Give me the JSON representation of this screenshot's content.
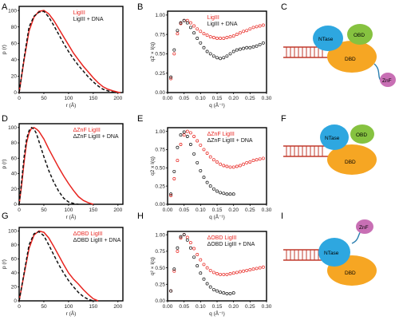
{
  "colors": {
    "red": "#e8241f",
    "black": "#111111",
    "ntase": "#2ea7e0",
    "obd": "#86c240",
    "dbd": "#f6a623",
    "znf": "#c86fb4",
    "linker": "#2b7fb0",
    "dna": "#c0392b"
  },
  "panels": {
    "A": {
      "label": "A"
    },
    "B": {
      "label": "B"
    },
    "C": {
      "label": "C"
    },
    "D": {
      "label": "D"
    },
    "E": {
      "label": "E"
    },
    "F": {
      "label": "F"
    },
    "G": {
      "label": "G"
    },
    "H": {
      "label": "H"
    },
    "I": {
      "label": "I"
    }
  },
  "diagrams": {
    "C": {
      "ntase": "NTase",
      "obd": "OBD",
      "dbd": "DBD",
      "znf": "ZnF"
    },
    "F": {
      "ntase": "NTase",
      "obd": "OBD",
      "dbd": "DBD"
    },
    "I": {
      "ntase": "NTase",
      "znf": "ZnF",
      "dbd": "DBD"
    }
  },
  "chart_data": [
    {
      "id": "A",
      "type": "line",
      "xlabel": "r (Å)",
      "ylabel": "p (r)",
      "xlim": [
        0,
        210
      ],
      "ylim": [
        0,
        105
      ],
      "xticks": [
        "0",
        "50",
        "100",
        "150",
        "200"
      ],
      "yticks": [
        "0",
        "20",
        "40",
        "60",
        "80",
        "100"
      ],
      "series": [
        {
          "name": "LigIII",
          "color": "red",
          "style": "solid",
          "x": [
            0,
            10,
            20,
            30,
            40,
            50,
            60,
            70,
            80,
            90,
            100,
            110,
            120,
            130,
            140,
            150,
            160,
            170,
            180,
            190,
            200,
            205
          ],
          "y": [
            0,
            40,
            75,
            92,
            99,
            100,
            96,
            88,
            78,
            68,
            58,
            48,
            40,
            32,
            25,
            18,
            12,
            7,
            4,
            2,
            0.5,
            0
          ]
        },
        {
          "name": "LigIII + DNA",
          "color": "black",
          "style": "dashed",
          "x": [
            0,
            10,
            20,
            30,
            40,
            50,
            60,
            70,
            80,
            90,
            100,
            110,
            120,
            130,
            140,
            150,
            160,
            170,
            180,
            190,
            195
          ],
          "y": [
            0,
            42,
            80,
            93,
            98,
            99,
            92,
            82,
            71,
            60,
            50,
            41,
            33,
            26,
            19,
            13,
            8,
            4,
            2,
            0.5,
            0
          ]
        }
      ]
    },
    {
      "id": "B",
      "type": "scatter",
      "xlabel": "q (Å⁻¹)",
      "ylabel": "q2 × I(q)",
      "xlim": [
        0,
        0.3
      ],
      "ylim": [
        0,
        1.05
      ],
      "xticks": [
        "0.00",
        "0.05",
        "0.10",
        "0.15",
        "0.20",
        "0.25",
        "0.30"
      ],
      "yticks": [
        "0.00",
        "0.25",
        "0.50",
        "0.75",
        "1.00"
      ],
      "series": [
        {
          "name": "LigIII",
          "color": "red",
          "x": [
            0.01,
            0.02,
            0.03,
            0.04,
            0.05,
            0.06,
            0.07,
            0.08,
            0.09,
            0.1,
            0.11,
            0.12,
            0.13,
            0.14,
            0.15,
            0.16,
            0.17,
            0.18,
            0.19,
            0.2,
            0.21,
            0.22,
            0.23,
            0.24,
            0.25,
            0.26,
            0.27,
            0.28,
            0.29
          ],
          "y": [
            0.18,
            0.5,
            0.76,
            0.89,
            0.93,
            0.93,
            0.9,
            0.86,
            0.82,
            0.79,
            0.76,
            0.74,
            0.72,
            0.71,
            0.7,
            0.7,
            0.7,
            0.71,
            0.72,
            0.73,
            0.75,
            0.77,
            0.79,
            0.8,
            0.82,
            0.84,
            0.85,
            0.86,
            0.87
          ]
        },
        {
          "name": "LigIII + DNA",
          "color": "black",
          "x": [
            0.01,
            0.02,
            0.03,
            0.04,
            0.05,
            0.06,
            0.07,
            0.08,
            0.09,
            0.1,
            0.11,
            0.12,
            0.13,
            0.14,
            0.15,
            0.16,
            0.17,
            0.18,
            0.19,
            0.2,
            0.21,
            0.22,
            0.23,
            0.24,
            0.25,
            0.26,
            0.27,
            0.28,
            0.29
          ],
          "y": [
            0.2,
            0.55,
            0.8,
            0.9,
            0.93,
            0.9,
            0.84,
            0.77,
            0.7,
            0.64,
            0.58,
            0.53,
            0.5,
            0.47,
            0.45,
            0.44,
            0.45,
            0.47,
            0.5,
            0.53,
            0.55,
            0.56,
            0.57,
            0.58,
            0.58,
            0.59,
            0.6,
            0.62,
            0.64
          ]
        }
      ]
    },
    {
      "id": "D",
      "type": "line",
      "xlabel": "r (Å)",
      "ylabel": "p (r)",
      "xlim": [
        0,
        210
      ],
      "ylim": [
        0,
        105
      ],
      "xticks": [
        "0",
        "50",
        "100",
        "150",
        "200"
      ],
      "yticks": [
        "0",
        "20",
        "40",
        "60",
        "80",
        "100"
      ],
      "series": [
        {
          "name": "ΔZnF LigIII",
          "color": "red",
          "style": "solid",
          "x": [
            0,
            5,
            10,
            15,
            20,
            25,
            30,
            35,
            40,
            50,
            60,
            70,
            80,
            90,
            100,
            110,
            120,
            130,
            140,
            150
          ],
          "y": [
            0,
            25,
            55,
            80,
            93,
            99,
            100,
            98,
            95,
            85,
            72,
            60,
            48,
            37,
            27,
            18,
            10,
            5,
            2,
            0
          ]
        },
        {
          "name": "ΔZnF LigIII + DNA",
          "color": "black",
          "style": "dashed",
          "x": [
            0,
            5,
            10,
            15,
            20,
            25,
            30,
            35,
            40,
            50,
            60,
            70,
            80,
            90,
            100,
            110,
            120
          ],
          "y": [
            0,
            30,
            62,
            85,
            96,
            100,
            98,
            92,
            82,
            62,
            44,
            29,
            17,
            8,
            3,
            1,
            0
          ]
        }
      ]
    },
    {
      "id": "E",
      "type": "scatter",
      "xlabel": "q (Å⁻¹)",
      "ylabel": "q2 x I(q)",
      "xlim": [
        0,
        0.3
      ],
      "ylim": [
        0,
        1.05
      ],
      "xticks": [
        "0.00",
        "0.05",
        "0.10",
        "0.15",
        "0.20",
        "0.25",
        "0.30"
      ],
      "yticks": [
        "0.00",
        "0.25",
        "0.50",
        "0.75",
        "1.00"
      ],
      "series": [
        {
          "name": "ΔZnF LigIII",
          "color": "red",
          "x": [
            0.01,
            0.02,
            0.03,
            0.04,
            0.05,
            0.06,
            0.07,
            0.08,
            0.09,
            0.1,
            0.11,
            0.12,
            0.13,
            0.14,
            0.15,
            0.16,
            0.17,
            0.18,
            0.19,
            0.2,
            0.21,
            0.22,
            0.23,
            0.24,
            0.25,
            0.26,
            0.27,
            0.28,
            0.29
          ],
          "y": [
            0.12,
            0.35,
            0.6,
            0.82,
            0.95,
            1.0,
            0.98,
            0.93,
            0.87,
            0.81,
            0.75,
            0.7,
            0.65,
            0.61,
            0.58,
            0.55,
            0.53,
            0.52,
            0.51,
            0.51,
            0.52,
            0.53,
            0.55,
            0.57,
            0.58,
            0.6,
            0.61,
            0.62,
            0.63
          ]
        },
        {
          "name": "ΔZnF LigIII + DNA",
          "color": "black",
          "x": [
            0.01,
            0.02,
            0.03,
            0.04,
            0.05,
            0.06,
            0.07,
            0.08,
            0.09,
            0.1,
            0.11,
            0.12,
            0.13,
            0.14,
            0.15,
            0.16,
            0.17,
            0.18,
            0.19,
            0.2
          ],
          "y": [
            0.14,
            0.45,
            0.78,
            0.95,
            0.99,
            0.93,
            0.82,
            0.69,
            0.57,
            0.46,
            0.37,
            0.3,
            0.25,
            0.21,
            0.18,
            0.16,
            0.15,
            0.14,
            0.14,
            0.14
          ]
        }
      ]
    },
    {
      "id": "G",
      "type": "line",
      "xlabel": "r (Å)",
      "ylabel": "p (r)",
      "xlim": [
        0,
        210
      ],
      "ylim": [
        0,
        105
      ],
      "xticks": [
        "0",
        "50",
        "100",
        "150",
        "200"
      ],
      "yticks": [
        "0",
        "20",
        "40",
        "60",
        "80",
        "100"
      ],
      "series": [
        {
          "name": "ΔOBD LigIII",
          "color": "red",
          "style": "solid",
          "x": [
            0,
            10,
            20,
            30,
            40,
            50,
            60,
            70,
            80,
            90,
            100,
            110,
            120,
            130,
            140,
            150,
            160
          ],
          "y": [
            0,
            38,
            75,
            94,
            100,
            98,
            90,
            78,
            65,
            52,
            40,
            31,
            24,
            16,
            9,
            3,
            0
          ]
        },
        {
          "name": "ΔOBD LigIII + DNA",
          "color": "black",
          "style": "dashed",
          "x": [
            0,
            10,
            20,
            30,
            40,
            50,
            60,
            70,
            80,
            90,
            100,
            110,
            120,
            130,
            140,
            150
          ],
          "y": [
            0,
            40,
            80,
            96,
            99,
            93,
            80,
            66,
            52,
            40,
            29,
            20,
            12,
            6,
            2,
            0
          ]
        }
      ]
    },
    {
      "id": "H",
      "type": "scatter",
      "xlabel": "q (Å⁻¹)",
      "ylabel": "q² × I(q)",
      "xlim": [
        0,
        0.3
      ],
      "ylim": [
        0,
        1.05
      ],
      "xticks": [
        "0.00",
        "0.05",
        "0.10",
        "0.15",
        "0.20",
        "0.25",
        "0.30"
      ],
      "yticks": [
        "0.00",
        "0.25",
        "0.50",
        "0.75",
        "1.00"
      ],
      "series": [
        {
          "name": "ΔOBD LigIII",
          "color": "red",
          "x": [
            0.01,
            0.02,
            0.03,
            0.04,
            0.05,
            0.06,
            0.07,
            0.08,
            0.09,
            0.1,
            0.11,
            0.12,
            0.13,
            0.14,
            0.15,
            0.16,
            0.17,
            0.18,
            0.19,
            0.2,
            0.21,
            0.22,
            0.23,
            0.24,
            0.25,
            0.26,
            0.27,
            0.28,
            0.29
          ],
          "y": [
            0.15,
            0.45,
            0.75,
            0.95,
            1.0,
            0.96,
            0.88,
            0.79,
            0.7,
            0.62,
            0.55,
            0.5,
            0.46,
            0.43,
            0.41,
            0.4,
            0.4,
            0.4,
            0.41,
            0.42,
            0.43,
            0.44,
            0.45,
            0.46,
            0.47,
            0.48,
            0.49,
            0.5,
            0.51
          ]
        },
        {
          "name": "ΔOBD LigIII + DNA",
          "color": "black",
          "x": [
            0.01,
            0.02,
            0.03,
            0.04,
            0.05,
            0.06,
            0.07,
            0.08,
            0.09,
            0.1,
            0.11,
            0.12,
            0.13,
            0.14,
            0.15,
            0.16,
            0.17,
            0.18,
            0.19,
            0.2
          ],
          "y": [
            0.15,
            0.48,
            0.8,
            0.97,
            1.0,
            0.92,
            0.8,
            0.66,
            0.53,
            0.42,
            0.33,
            0.26,
            0.21,
            0.17,
            0.15,
            0.13,
            0.12,
            0.11,
            0.11,
            0.12
          ]
        }
      ]
    }
  ]
}
